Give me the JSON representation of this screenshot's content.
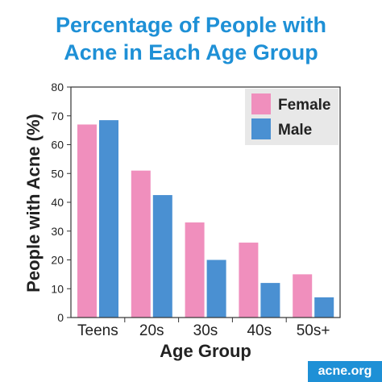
{
  "header": {
    "title_line1": "Percentage of People with",
    "title_line2": "Acne in Each Age Group"
  },
  "brand": {
    "text": "acne.org"
  },
  "colors": {
    "female": "#f08fbd",
    "male": "#4a90d2",
    "title": "#1e90d6"
  },
  "chart_data": {
    "type": "bar",
    "title": "Percentage of People with Acne in Each Age Group",
    "xlabel": "Age Group",
    "ylabel": "People with Acne (%)",
    "ylim": [
      0,
      80
    ],
    "yticks": [
      0,
      10,
      20,
      30,
      40,
      50,
      60,
      70,
      80
    ],
    "categories": [
      "Teens",
      "20s",
      "30s",
      "40s",
      "50s+"
    ],
    "series": [
      {
        "name": "Female",
        "values": [
          67,
          51,
          33,
          26,
          15
        ]
      },
      {
        "name": "Male",
        "values": [
          68.5,
          42.5,
          20,
          12,
          7
        ]
      }
    ],
    "legend": "top-right",
    "grid": false
  }
}
